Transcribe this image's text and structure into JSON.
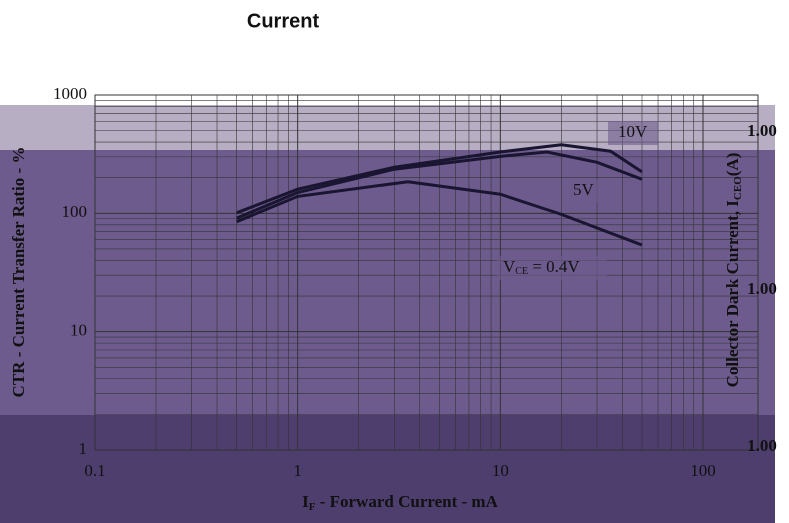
{
  "chart_data": {
    "type": "line",
    "title": "Current",
    "y_label": "CTR - Current Transfer Ratio - %",
    "x_label_parts": [
      "I",
      "F",
      " - Forward Current - mA"
    ],
    "y2_label_parts": [
      "Collector Dark Current, I",
      "CEO",
      "(A)"
    ],
    "y2_tick_labels": [
      "1.00",
      "1.00",
      "1.00"
    ],
    "xscale": "log",
    "yscale": "log",
    "grid": true,
    "xlim": [
      0.1,
      100
    ],
    "xticks": [
      0.1,
      1,
      10,
      100
    ],
    "ylim": [
      1,
      1000
    ],
    "yticks": [
      1,
      10,
      100,
      1000
    ],
    "series": [
      {
        "name": "10V",
        "color": "#1a1530",
        "x": [
          0.5,
          1,
          3,
          10,
          20,
          35,
          50
        ],
        "values": [
          101,
          160,
          245,
          330,
          380,
          335,
          224
        ]
      },
      {
        "name": "5V",
        "color": "#1a1530",
        "x": [
          0.5,
          1,
          3,
          10,
          17,
          30,
          50
        ],
        "values": [
          91,
          150,
          236,
          303,
          330,
          270,
          194
        ]
      },
      {
        "name_parts": [
          "V",
          "CE",
          " = 0.4V"
        ],
        "color": "#1a1530",
        "x": [
          0.5,
          1,
          3.5,
          10,
          20,
          50
        ],
        "values": [
          85,
          139,
          185,
          145,
          98,
          54
        ]
      }
    ]
  }
}
